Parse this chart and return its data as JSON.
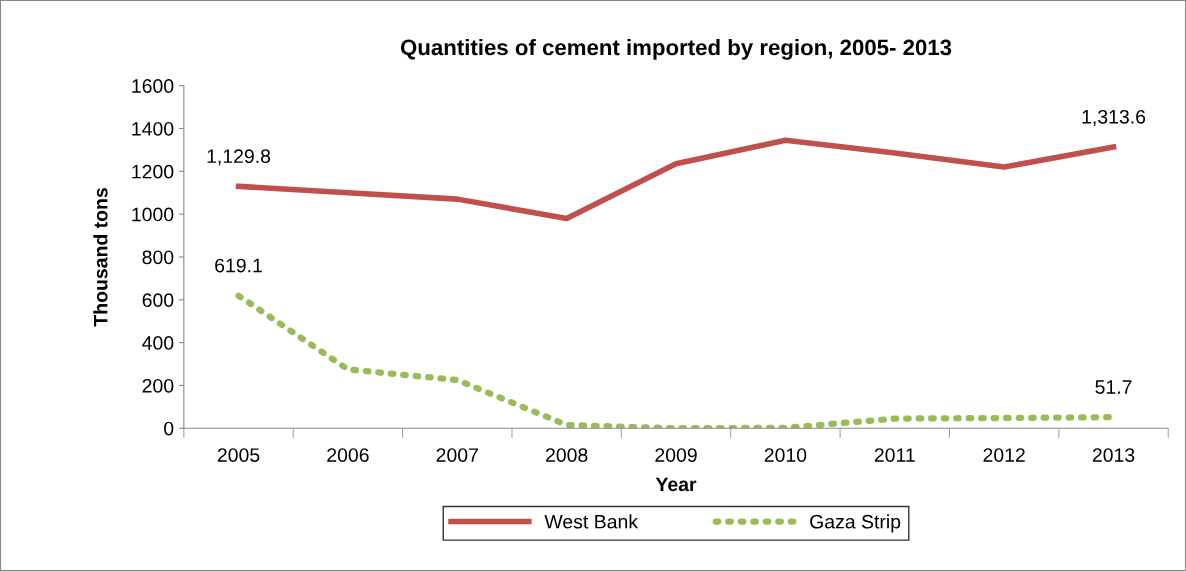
{
  "chart_data": {
    "type": "line",
    "title": "Quantities of cement imported by region, 2005- 2013",
    "xlabel": "Year",
    "ylabel": "Thousand tons",
    "categories": [
      "2005",
      "2006",
      "2007",
      "2008",
      "2009",
      "2010",
      "2011",
      "2012",
      "2013"
    ],
    "series": [
      {
        "name": "West Bank",
        "color": "#c0504d",
        "line_style": "solid",
        "values": [
          1129.8,
          1100,
          1070,
          980,
          1235,
          1345,
          1285,
          1220,
          1313.6
        ],
        "value_labels": [
          "1,129.8",
          null,
          null,
          null,
          null,
          null,
          null,
          null,
          "1,313.6"
        ]
      },
      {
        "name": "Gaza Strip",
        "color": "#9bbb59",
        "line_style": "dotted",
        "values": [
          619.1,
          275,
          225,
          15,
          0,
          2,
          45,
          48,
          51.7
        ],
        "value_labels": [
          "619.1",
          null,
          null,
          null,
          null,
          null,
          null,
          null,
          "51.7"
        ]
      }
    ],
    "ylim": [
      0,
      1600
    ],
    "yticks": [
      0,
      200,
      400,
      600,
      800,
      1000,
      1200,
      1400,
      1600
    ],
    "grid": false,
    "legend": "bottom",
    "marker": "none"
  }
}
